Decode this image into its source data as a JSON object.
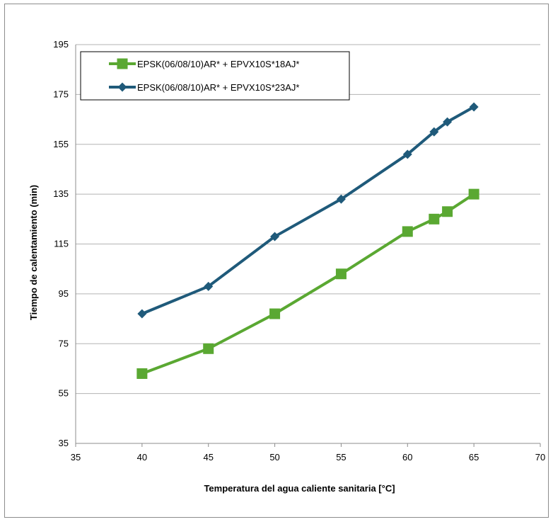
{
  "chart_data": {
    "type": "line",
    "xlabel": "Temperatura del agua caliente sanitaria [°C]",
    "ylabel": "Tiempo de calentamiento (min)",
    "xlim": [
      35,
      70
    ],
    "ylim": [
      35,
      195
    ],
    "xticks": [
      35,
      40,
      45,
      50,
      55,
      60,
      65,
      70
    ],
    "yticks": [
      35,
      55,
      75,
      95,
      115,
      135,
      155,
      175,
      195
    ],
    "grid": "horizontal",
    "legend_position": "top-left",
    "series": [
      {
        "name": "EPSK(06/08/10)AR* + EPVX10S*18AJ*",
        "color": "#5aa832",
        "marker": "square",
        "x": [
          40,
          45,
          50,
          55,
          60,
          62,
          63,
          65
        ],
        "values": [
          63,
          73,
          87,
          103,
          120,
          125,
          128,
          135
        ]
      },
      {
        "name": "EPSK(06/08/10)AR* + EPVX10S*23AJ*",
        "color": "#1f5a7a",
        "marker": "diamond",
        "x": [
          40,
          45,
          50,
          55,
          60,
          62,
          63,
          65
        ],
        "values": [
          87,
          98,
          118,
          133,
          151,
          160,
          164,
          170
        ]
      }
    ]
  }
}
